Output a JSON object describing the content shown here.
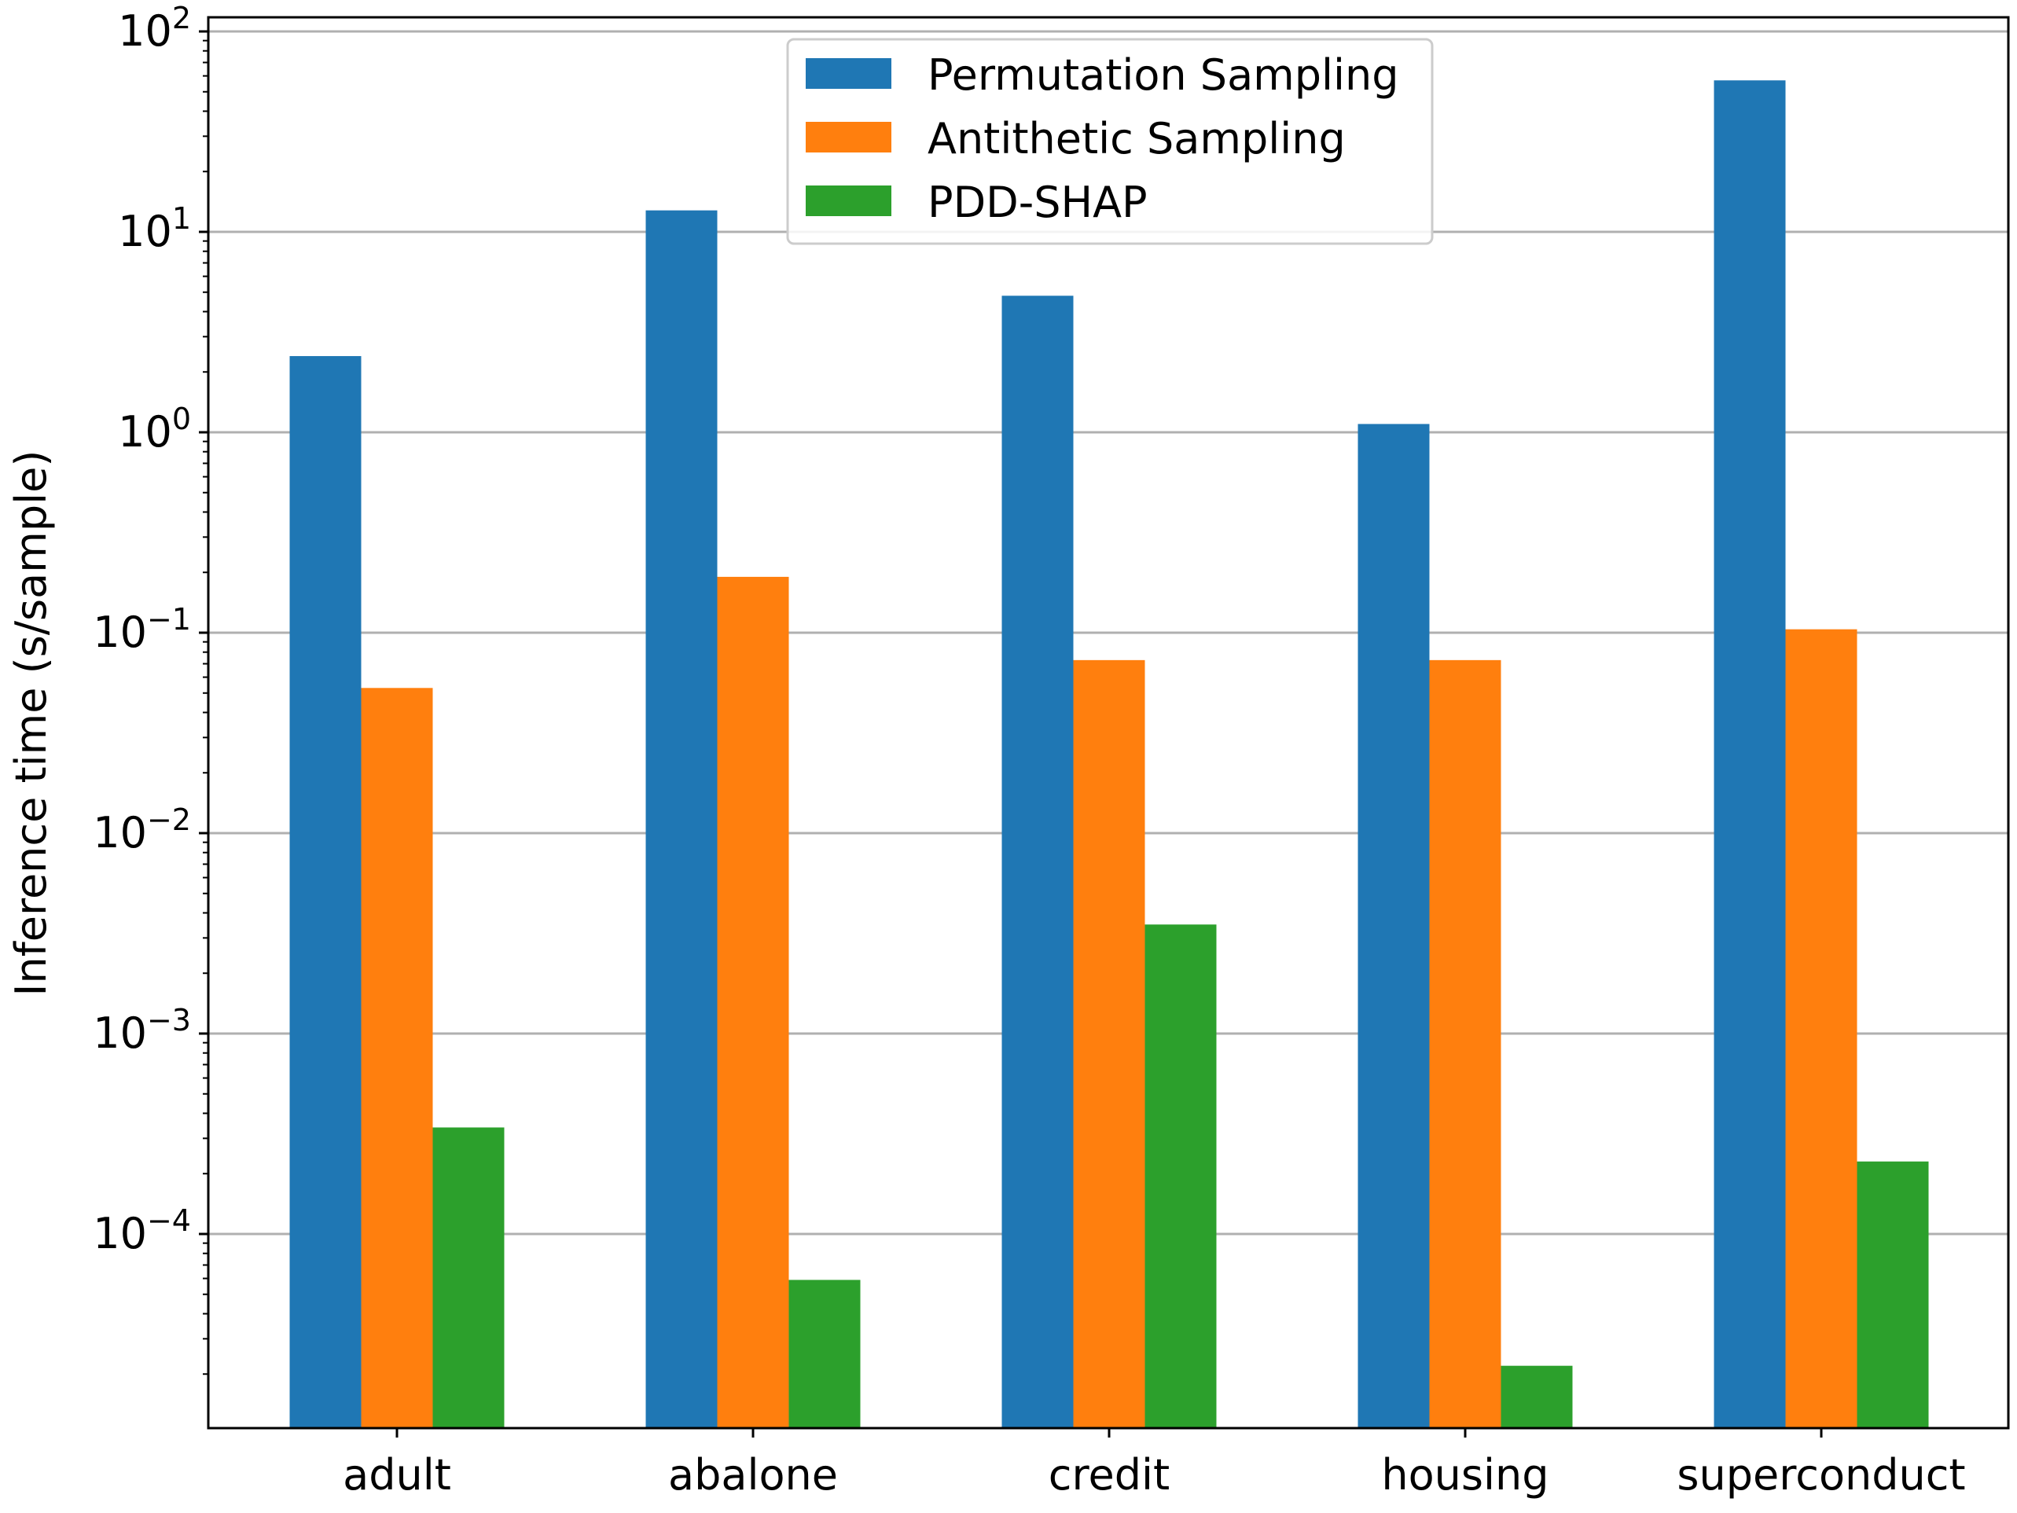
{
  "chart_data": {
    "type": "bar",
    "title": "",
    "xlabel": "",
    "ylabel": "Inference time (s/sample)",
    "yscale": "log",
    "ylim": [
      1.3e-05,
      120
    ],
    "grid": "y-major",
    "legend_position": "top-center",
    "categories": [
      "adult",
      "abalone",
      "credit",
      "housing",
      "superconduct"
    ],
    "series": [
      {
        "name": "Permutation Sampling",
        "color": "#1f77b4",
        "values": [
          2.4,
          12.8,
          4.8,
          1.1,
          57
        ]
      },
      {
        "name": "Antithetic Sampling",
        "color": "#ff7f0e",
        "values": [
          0.053,
          0.19,
          0.073,
          0.073,
          0.104
        ]
      },
      {
        "name": "PDD-SHAP",
        "color": "#2ca02c",
        "values": [
          0.00034,
          5.9e-05,
          0.0035,
          2.2e-05,
          0.00023
        ]
      }
    ],
    "y_ticks": [
      {
        "value": 0.0001,
        "base": "10",
        "exp": "−4"
      },
      {
        "value": 0.001,
        "base": "10",
        "exp": "−3"
      },
      {
        "value": 0.01,
        "base": "10",
        "exp": "−2"
      },
      {
        "value": 0.1,
        "base": "10",
        "exp": "−1"
      },
      {
        "value": 1,
        "base": "10",
        "exp": "0"
      },
      {
        "value": 10,
        "base": "10",
        "exp": "1"
      },
      {
        "value": 100,
        "base": "10",
        "exp": "2"
      }
    ]
  }
}
